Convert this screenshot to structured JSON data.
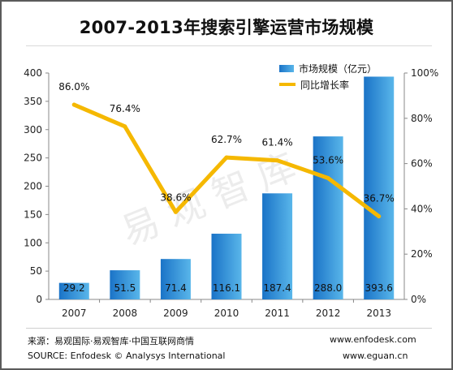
{
  "header": {
    "title": "2007-2013年搜索引擎运营市场规模"
  },
  "legend": {
    "bar_label": "市场规模（亿元）",
    "line_label": "同比增长率"
  },
  "watermark": "易观智库",
  "footer": {
    "source_cn": "来源：易观国际·易观智库·中国互联网商情",
    "source_en": "SOURCE: Enfodesk © Analysys International",
    "url_1": "www.enfodesk.com",
    "url_2": "www.eguan.cn"
  },
  "colors": {
    "bar_dark": "#1a73c7",
    "bar_light": "#59b6ea",
    "line": "#f5b800"
  },
  "chart_data": {
    "type": "bar",
    "categories": [
      "2007",
      "2008",
      "2009",
      "2010",
      "2011",
      "2012",
      "2013"
    ],
    "series": [
      {
        "name": "市场规模（亿元）",
        "type": "bar",
        "axis": "left",
        "values": [
          29.2,
          51.5,
          71.4,
          116.1,
          187.4,
          288.0,
          393.6
        ],
        "labels": [
          "29.2",
          "51.5",
          "71.4",
          "116.1",
          "187.4",
          "288.0",
          "393.6"
        ]
      },
      {
        "name": "同比增长率",
        "type": "line",
        "axis": "right",
        "values": [
          86.0,
          76.4,
          38.6,
          62.7,
          61.4,
          53.6,
          36.7
        ],
        "labels": [
          "86.0%",
          "76.4%",
          "38.6%",
          "62.7%",
          "61.4%",
          "53.6%",
          "36.7%"
        ]
      }
    ],
    "y_left": {
      "min": 0,
      "max": 400,
      "ticks": [
        "0",
        "50",
        "100",
        "150",
        "200",
        "250",
        "300",
        "350",
        "400"
      ]
    },
    "y_right": {
      "min": 0,
      "max": 100,
      "ticks": [
        "0%",
        "20%",
        "40%",
        "60%",
        "80%",
        "100%"
      ]
    },
    "grid": false,
    "legend_position": "top-right"
  }
}
